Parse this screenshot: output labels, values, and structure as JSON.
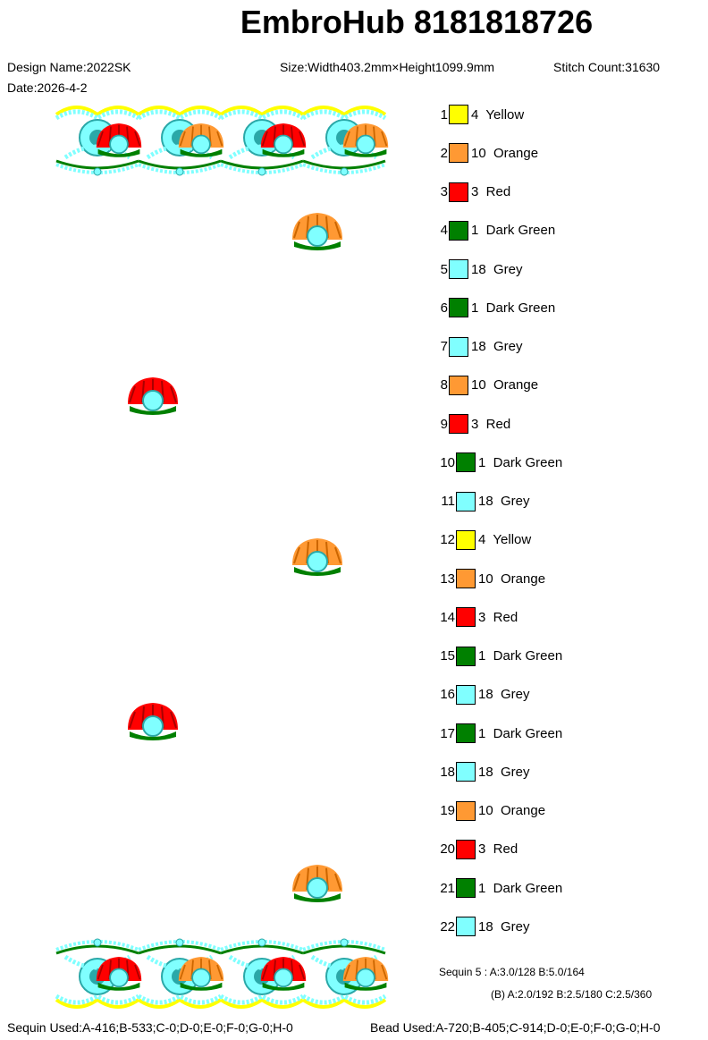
{
  "header": {
    "title": "EmbroHub 8181818726"
  },
  "meta": {
    "design_name": "Design Name:2022SK",
    "size": "Size:Width403.2mm×Height1099.9mm",
    "stitch_count": "Stitch Count:31630",
    "date": "Date:2026-4-2"
  },
  "colors": {
    "Yellow": "#ffff00",
    "Orange": "#ff9933",
    "Red": "#ff0000",
    "Dark Green": "#008000",
    "Grey": "#80ffff"
  },
  "legend": [
    {
      "num": "1",
      "label": "4  Yellow",
      "color": "Yellow"
    },
    {
      "num": "2",
      "label": "10  Orange",
      "color": "Orange"
    },
    {
      "num": "3",
      "label": "3  Red",
      "color": "Red"
    },
    {
      "num": "4",
      "label": "1  Dark Green",
      "color": "Dark Green"
    },
    {
      "num": "5",
      "label": "18  Grey",
      "color": "Grey"
    },
    {
      "num": "6",
      "label": "1  Dark Green",
      "color": "Dark Green"
    },
    {
      "num": "7",
      "label": "18  Grey",
      "color": "Grey"
    },
    {
      "num": "8",
      "label": "10  Orange",
      "color": "Orange"
    },
    {
      "num": "9",
      "label": "3  Red",
      "color": "Red"
    },
    {
      "num": "10",
      "label": "1  Dark Green",
      "color": "Dark Green"
    },
    {
      "num": "11",
      "label": "18  Grey",
      "color": "Grey"
    },
    {
      "num": "12",
      "label": "4  Yellow",
      "color": "Yellow"
    },
    {
      "num": "13",
      "label": "10  Orange",
      "color": "Orange"
    },
    {
      "num": "14",
      "label": "3  Red",
      "color": "Red"
    },
    {
      "num": "15",
      "label": "1  Dark Green",
      "color": "Dark Green"
    },
    {
      "num": "16",
      "label": "18  Grey",
      "color": "Grey"
    },
    {
      "num": "17",
      "label": "1  Dark Green",
      "color": "Dark Green"
    },
    {
      "num": "18",
      "label": "18  Grey",
      "color": "Grey"
    },
    {
      "num": "19",
      "label": "10  Orange",
      "color": "Orange"
    },
    {
      "num": "20",
      "label": "3  Red",
      "color": "Red"
    },
    {
      "num": "21",
      "label": "1  Dark Green",
      "color": "Dark Green"
    },
    {
      "num": "22",
      "label": "18  Grey",
      "color": "Grey"
    }
  ],
  "sequin": {
    "line1": "Sequin 5 : A:3.0/128   B:5.0/164",
    "line2": "(B) A:2.0/192   B:2.5/180   C:2.5/360"
  },
  "footer": {
    "sequin_used": "Sequin Used:A-416;B-533;C-0;D-0;E-0;F-0;G-0;H-0",
    "bead_used": "Bead Used:A-720;B-405;C-914;D-0;E-0;F-0;G-0;H-0"
  }
}
